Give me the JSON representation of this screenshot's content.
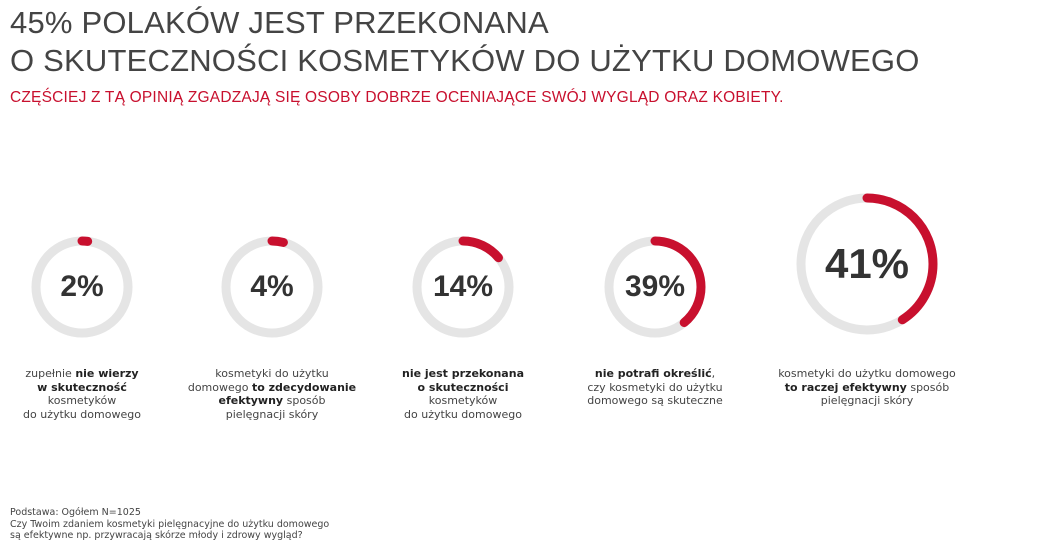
{
  "title": [
    "45% POLAKÓW JEST PRZEKONANA",
    "O SKUTECZNOŚCI KOSMETYKÓW DO UŻYTKU DOMOWEGO"
  ],
  "subtitle": "CZĘŚCIEJ Z TĄ OPINIĄ ZGADZAJĄ SIĘ OSOBY DOBRZE OCENIAJĄCE SWÓJ WYGLĄD ORAZ KOBIETY.",
  "colors": {
    "accent": "#c8102e",
    "track": "#e5e5e5",
    "text": "#333333"
  },
  "chart_data": {
    "type": "donut",
    "items": [
      {
        "value": 2,
        "label": "2%",
        "desc": [
          [
            {
              "t": "zupełnie ",
              "b": false
            },
            {
              "t": "nie wierzy",
              "b": true
            }
          ],
          [
            {
              "t": "w skuteczność",
              "b": true
            }
          ],
          [
            {
              "t": "kosmetyków",
              "b": false
            }
          ],
          [
            {
              "t": "do użytku domowego",
              "b": false
            }
          ]
        ]
      },
      {
        "value": 4,
        "label": "4%",
        "desc": [
          [
            {
              "t": "kosmetyki do użytku",
              "b": false
            }
          ],
          [
            {
              "t": "domowego ",
              "b": false
            },
            {
              "t": "to zdecydowanie",
              "b": true
            }
          ],
          [
            {
              "t": "efektywny",
              "b": true
            },
            {
              "t": " sposób",
              "b": false
            }
          ],
          [
            {
              "t": "pielęgnacji skóry",
              "b": false
            }
          ]
        ]
      },
      {
        "value": 14,
        "label": "14%",
        "desc": [
          [
            {
              "t": "nie jest przekonana",
              "b": true
            }
          ],
          [
            {
              "t": "o skuteczności",
              "b": true
            }
          ],
          [
            {
              "t": "kosmetyków",
              "b": false
            }
          ],
          [
            {
              "t": "do użytku domowego",
              "b": false
            }
          ]
        ]
      },
      {
        "value": 39,
        "label": "39%",
        "desc": [
          [
            {
              "t": "nie potrafi określić",
              "b": true
            },
            {
              "t": ",",
              "b": false
            }
          ],
          [
            {
              "t": "czy kosmetyki do użytku",
              "b": false
            }
          ],
          [
            {
              "t": "domowego są skuteczne",
              "b": false
            }
          ]
        ]
      },
      {
        "value": 41,
        "label": "41%",
        "desc": [
          [
            {
              "t": "kosmetyki do użytku domowego",
              "b": false
            }
          ],
          [
            {
              "t": "to raczej efektywny",
              "b": true
            },
            {
              "t": " sposób",
              "b": false
            }
          ],
          [
            {
              "t": "pielęgnacji skóry",
              "b": false
            }
          ]
        ]
      }
    ]
  },
  "footer": [
    "Podstawa: Ogółem N=1025",
    "Czy Twoim zdaniem kosmetyki pielęgnacyjne do użytku domowego",
    "są efektywne np. przywracają skórze młody i zdrowy wygląd?"
  ]
}
